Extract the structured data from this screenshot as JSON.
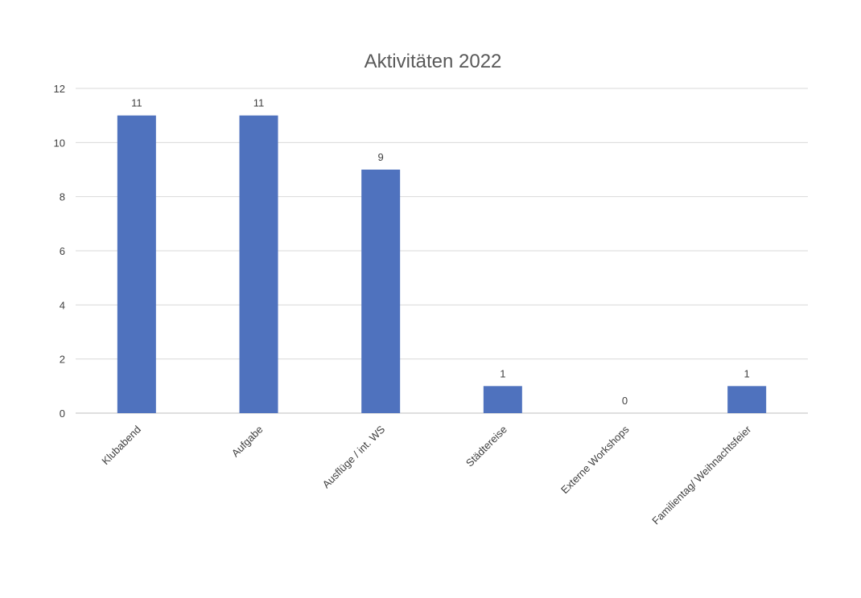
{
  "chart_data": {
    "type": "bar",
    "title": "Aktivitäten 2022",
    "xlabel": "",
    "ylabel": "",
    "categories": [
      "Klubabend",
      "Aufgabe",
      "Ausflüge / int. WS",
      "Städtereise",
      "Externe Workshops",
      "Familientag/ Weihnachtsfeier"
    ],
    "values": [
      11,
      11,
      9,
      1,
      0,
      1
    ],
    "data_labels": [
      "11",
      "11",
      "9",
      "1",
      "0",
      "1"
    ],
    "ylim": [
      0,
      12
    ],
    "yticks": [
      "0",
      "2",
      "4",
      "6",
      "8",
      "10",
      "12"
    ],
    "grid": true,
    "legend": "none",
    "bar_color": "#4f72be"
  }
}
